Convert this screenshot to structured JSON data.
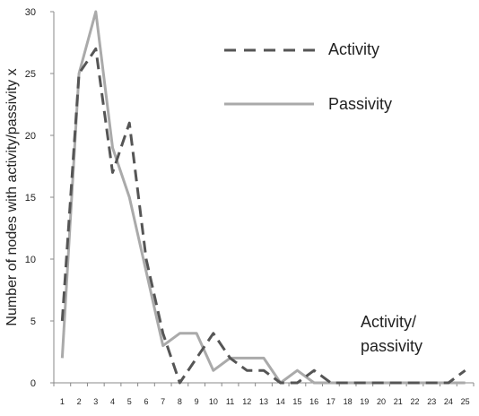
{
  "chart_data": {
    "type": "line",
    "title": "",
    "xlabel": "",
    "ylabel": "Number of nodes with activity/passivity x",
    "annotation": [
      "Activity/",
      "passivity"
    ],
    "x": [
      1,
      2,
      3,
      4,
      5,
      6,
      7,
      8,
      9,
      10,
      11,
      12,
      13,
      14,
      15,
      16,
      17,
      18,
      19,
      20,
      21,
      22,
      23,
      24,
      25
    ],
    "xtick_labels": [
      "1",
      "2",
      "3",
      "4",
      "5",
      "6",
      "7",
      "8",
      "9",
      "10",
      "11",
      "12",
      "13",
      "14",
      "15",
      "16",
      "17",
      "18",
      "19",
      "20",
      "21",
      "22",
      "23",
      "24",
      "25"
    ],
    "ylim": [
      0,
      30
    ],
    "yticks": [
      0,
      5,
      10,
      15,
      20,
      25,
      30
    ],
    "ytick_labels": [
      "0",
      "5",
      "10",
      "15",
      "20",
      "25",
      "30"
    ],
    "grid": false,
    "legend_position": "top-right",
    "series": [
      {
        "name": "Activity",
        "style": "dashed",
        "color": "#555555",
        "values": [
          5,
          25,
          27,
          17,
          21,
          10,
          4,
          0,
          2,
          4,
          2,
          1,
          1,
          0,
          0,
          1,
          0,
          0,
          0,
          0,
          0,
          0,
          0,
          0,
          1
        ]
      },
      {
        "name": "Passivity",
        "style": "solid",
        "color": "#aaaaaa",
        "values": [
          2,
          25,
          30,
          19,
          15,
          9,
          3,
          4,
          4,
          1,
          2,
          2,
          2,
          0,
          1,
          0,
          0,
          0,
          0,
          0,
          0,
          0,
          0,
          0,
          0
        ]
      }
    ]
  }
}
